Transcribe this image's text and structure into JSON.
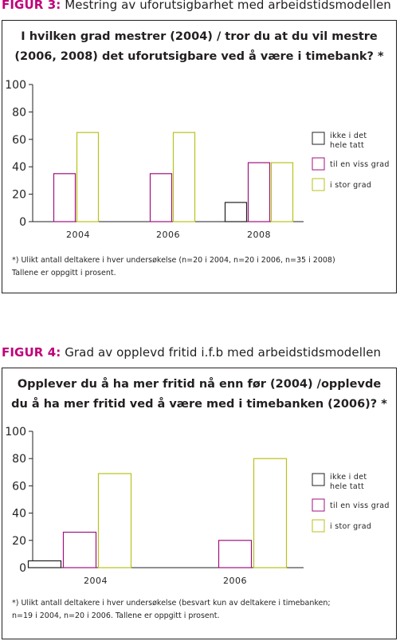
{
  "colors": {
    "accent": "#c0007a",
    "series": [
      "#231f20",
      "#a0127f",
      "#b9c21a"
    ],
    "text": "#231f20"
  },
  "figures": [
    {
      "label": "FIGUR 3:",
      "caption": " Mestring av uforutsigbarhet med arbeidstidsmodellen",
      "title_lines": [
        "I hvilken grad mestrer (2004) / tror du at du vil mestre",
        "(2006, 2008) det uforutsigbare ved å være i timebank? *"
      ],
      "footnote_lines": [
        "*) Ulikt antall deltakere i hver undersøkelse (n=20 i 2004, n=20 i 2006, n=35 i 2008)",
        "Tallene er oppgitt i prosent."
      ],
      "chart_data": {
        "type": "bar",
        "title": "I hvilken grad mestrer (2004) / tror du at du vil mestre (2006, 2008) det uforutsigbare ved å være i timebank? *",
        "categories": [
          "2004",
          "2006",
          "2008"
        ],
        "series": [
          {
            "name": "ikke i det hele tatt",
            "values": [
              0,
              0,
              14
            ]
          },
          {
            "name": "til en viss grad",
            "values": [
              35,
              35,
              43
            ]
          },
          {
            "name": "i stor grad",
            "values": [
              65,
              65,
              43
            ]
          }
        ],
        "ylim": [
          0,
          100
        ],
        "yticks": [
          0,
          20,
          40,
          60,
          80,
          100
        ],
        "xlabel": "",
        "ylabel": "",
        "grid": false,
        "legend": "right"
      }
    },
    {
      "label": "FIGUR 4:",
      "caption": " Grad av opplevd fritid i.f.b med arbeidstidsmodellen",
      "title_lines": [
        "Opplever du å ha mer fritid nå enn før (2004) /opplevde",
        "du å ha mer fritid ved å være med i timebanken (2006)? *"
      ],
      "footnote_lines": [
        "*) Ulikt antall deltakere i hver undersøkelse (besvart kun av deltakere i timebanken;",
        "n=19 i 2004, n=20 i 2006. Tallene er oppgitt i prosent."
      ],
      "chart_data": {
        "type": "bar",
        "title": "Opplever du å ha mer fritid nå enn før (2004) /opplevde du å ha mer fritid ved å være med i timebanken (2006)? *",
        "categories": [
          "2004",
          "2006"
        ],
        "series": [
          {
            "name": "ikke i det hele tatt",
            "values": [
              5,
              0
            ]
          },
          {
            "name": "til en viss grad",
            "values": [
              26,
              20
            ]
          },
          {
            "name": "i stor grad",
            "values": [
              69,
              80
            ]
          }
        ],
        "ylim": [
          0,
          100
        ],
        "yticks": [
          0,
          20,
          40,
          60,
          80,
          100
        ],
        "xlabel": "",
        "ylabel": "",
        "grid": false,
        "legend": "right"
      }
    }
  ],
  "legend_labels": [
    [
      "ikke i det",
      "hele tatt"
    ],
    [
      "til en viss grad"
    ],
    [
      "i stor grad"
    ]
  ]
}
